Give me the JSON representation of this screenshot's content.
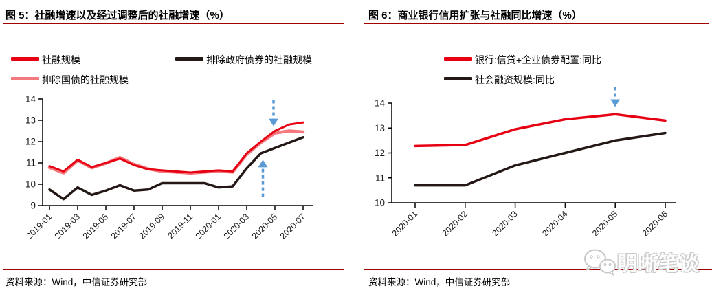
{
  "colors": {
    "rule_red": "#a00000",
    "axis_black": "#000000",
    "arrow_blue": "#5b9bd5",
    "watermark_gray": "#c8c8c8"
  },
  "figure5": {
    "title": "图 5：社融增速以及经过调整后的社融增速（%）",
    "source": "资料来源：Wind，中信证券研究部"
  },
  "figure6": {
    "title": "图 6：商业银行信用扩张与社融同比增速（%）",
    "source": "资料来源：Wind，中信证券研究部"
  },
  "watermark": {
    "label": "明晰笔谈",
    "icon": "wechat-icon"
  },
  "chart_data": [
    {
      "id": "fig5",
      "type": "line",
      "title": "图 5：社融增速以及经过调整后的社融增速（%）",
      "categories": [
        "2019-01",
        "2019-02",
        "2019-03",
        "2019-04",
        "2019-05",
        "2019-06",
        "2019-07",
        "2019-08",
        "2019-09",
        "2019-10",
        "2019-11",
        "2019-12",
        "2020-01",
        "2020-02",
        "2020-03",
        "2020-04",
        "2020-05",
        "2020-06",
        "2020-07"
      ],
      "series": [
        {
          "name": "排除国债的社融规模",
          "color": "#f4797f",
          "width": 4.5,
          "values": [
            10.78,
            10.53,
            11.12,
            10.77,
            10.98,
            11.25,
            10.93,
            10.72,
            10.6,
            10.57,
            10.52,
            10.57,
            10.62,
            10.57,
            11.4,
            11.95,
            12.4,
            12.5,
            12.45
          ]
        },
        {
          "name": "社融规模",
          "color": "#e60012",
          "width": 3,
          "values": [
            10.85,
            10.6,
            11.15,
            10.8,
            11.0,
            11.2,
            10.9,
            10.7,
            10.65,
            10.6,
            10.55,
            10.6,
            10.65,
            10.6,
            11.45,
            12.0,
            12.5,
            12.8,
            12.9
          ]
        },
        {
          "name": "排除政府债券的社融规模",
          "color": "#231815",
          "width": 3.5,
          "values": [
            9.75,
            9.3,
            9.85,
            9.5,
            9.7,
            9.95,
            9.7,
            9.75,
            10.05,
            10.05,
            10.05,
            10.05,
            9.85,
            9.9,
            10.75,
            11.45,
            11.7,
            11.95,
            12.2
          ]
        }
      ],
      "ylim": [
        9,
        14
      ],
      "ytick_step": 1,
      "xtick_every": 2,
      "grid": false,
      "legend_position": "top",
      "annotations": [
        {
          "type": "arrow-down",
          "x_index": 16,
          "x_offset": -2,
          "tip": 12.72,
          "tail": 13.95
        },
        {
          "type": "arrow-up",
          "x_index": 15,
          "x_offset": 3,
          "tip": 11.15,
          "tail": 9.4
        }
      ]
    },
    {
      "id": "fig6",
      "type": "line",
      "title": "图 6：商业银行信用扩张与社融同比增速（%）",
      "categories": [
        "2020-01",
        "2020-02",
        "2020-03",
        "2020-04",
        "2020-05",
        "2020-06"
      ],
      "series": [
        {
          "name": "银行:信贷+企业债券配置:同比",
          "color": "#e60012",
          "width": 3.5,
          "values": [
            12.28,
            12.32,
            12.95,
            13.35,
            13.55,
            13.3
          ]
        },
        {
          "name": "社会融资规模:同比",
          "color": "#231815",
          "width": 3.5,
          "values": [
            10.7,
            10.7,
            11.5,
            12.0,
            12.5,
            12.8
          ]
        }
      ],
      "ylim": [
        10,
        14
      ],
      "ytick_step": 1,
      "xtick_every": 1,
      "grid": false,
      "legend_position": "top",
      "annotations": [
        {
          "type": "arrow-down",
          "x_index": 4,
          "x_offset": 0,
          "tip": 13.85,
          "tail": 14.65
        }
      ]
    }
  ]
}
